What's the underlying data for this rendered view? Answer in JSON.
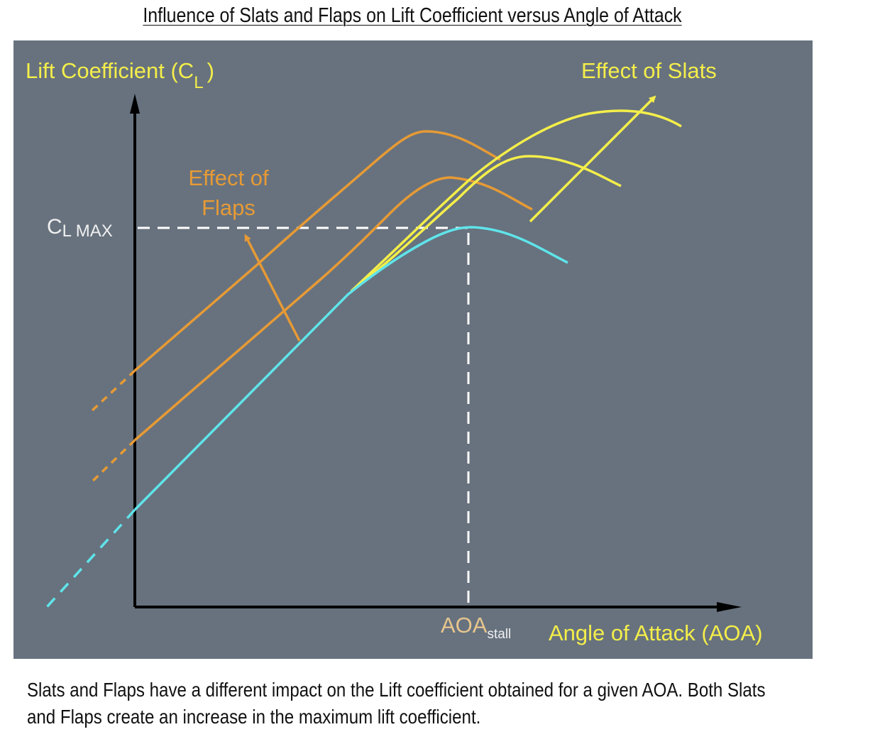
{
  "title": "Influence of Slats and Flaps on Lift Coefficient versus Angle of Attack",
  "y_axis_label": {
    "main": "Lift Coefficient (C",
    "sub": "L",
    "close": ")"
  },
  "cl_max_label": {
    "main": "C",
    "sub": "L MAX"
  },
  "x_axis_label": "Angle of Attack (AOA)",
  "aoa_stall_label": {
    "main": "AOA",
    "sub": "stall"
  },
  "flaps_label": {
    "line1": "Effect of",
    "line2": "Flaps"
  },
  "slats_label": "Effect of Slats",
  "caption": {
    "line1": "Slats and Flaps have a different impact on the Lift coefficient obtained for a given AOA. Both Slats",
    "line2": "and Flaps create an increase in the maximum lift coefficient."
  },
  "colors": {
    "background_panel": "#67727e",
    "basic_wing": "#5fe4ea",
    "flaps": "#e69a35",
    "slats": "#f4ee4a",
    "axis": "#000000",
    "reference_lines": "#ffffff"
  }
}
